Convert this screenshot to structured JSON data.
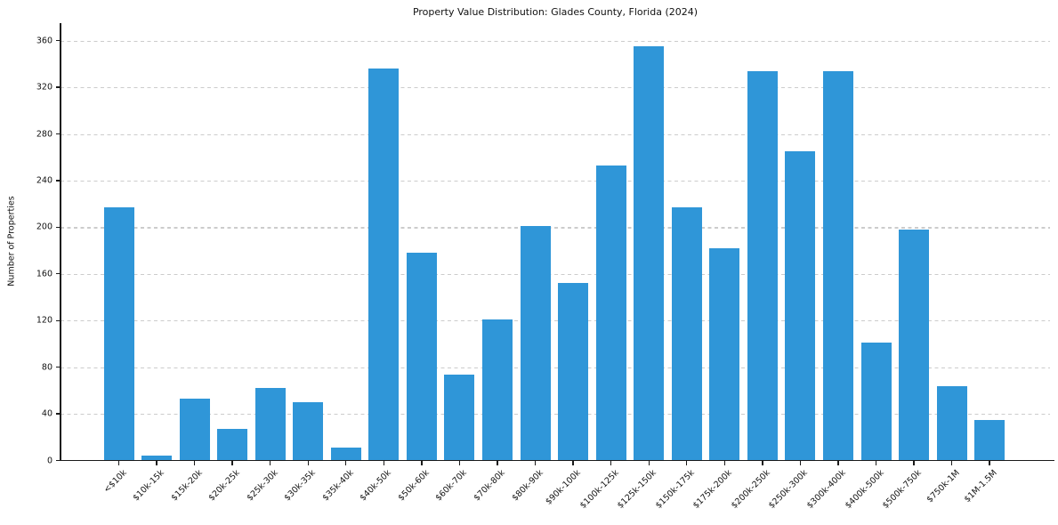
{
  "title": "Property Value Distribution: Glades County, Florida (2024)",
  "chart_data": {
    "type": "bar",
    "title": "Property Value Distribution: Glades County, Florida (2024)",
    "xlabel": "",
    "ylabel": "Number of Properties",
    "categories": [
      "<$10k",
      "$10k-15k",
      "$15k-20k",
      "$20k-25k",
      "$25k-30k",
      "$30k-35k",
      "$35k-40k",
      "$40k-50k",
      "$50k-60k",
      "$60k-70k",
      "$70k-80k",
      "$80k-90k",
      "$90k-100k",
      "$100k-125k",
      "$125k-150k",
      "$150k-175k",
      "$175k-200k",
      "$200k-250k",
      "$250k-300k",
      "$300k-400k",
      "$400k-500k",
      "$500k-750k",
      "$750k-1M",
      "$1M-1.5M"
    ],
    "values": [
      217,
      4,
      53,
      27,
      62,
      50,
      11,
      336,
      178,
      74,
      121,
      201,
      152,
      253,
      355,
      217,
      182,
      334,
      265,
      334,
      101,
      198,
      64,
      35
    ],
    "yticks": [
      0,
      40,
      80,
      120,
      160,
      200,
      240,
      280,
      320,
      360
    ],
    "ylim": [
      0,
      375
    ],
    "grid": "horizontal-dashed",
    "legend": "none",
    "colors": {
      "bar": "#2f96d8",
      "grid": "#cccccc",
      "axis": "#1a1a1a",
      "text": "#111111",
      "background": "#ffffff"
    }
  }
}
